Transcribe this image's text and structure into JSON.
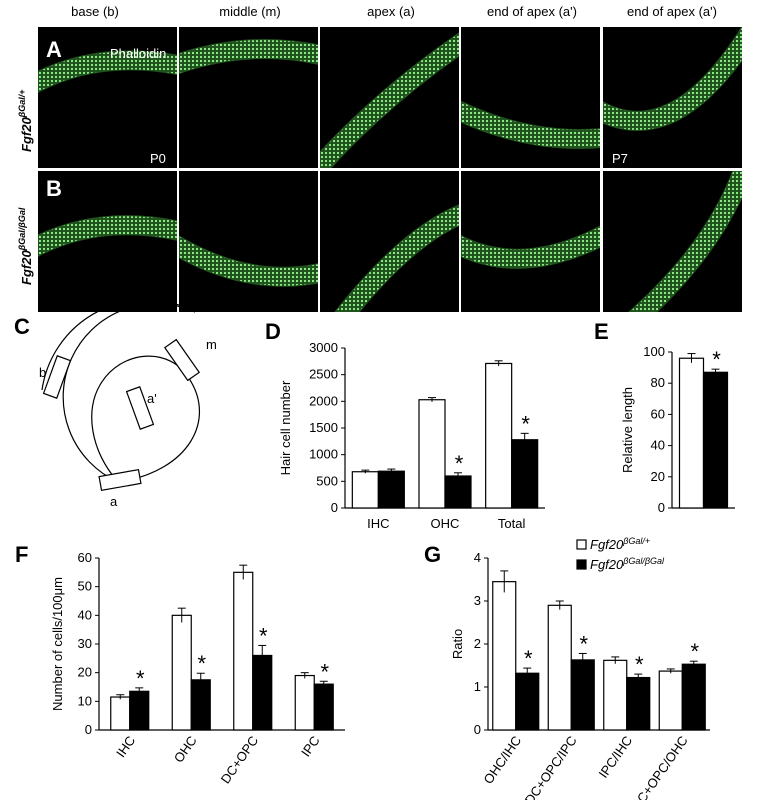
{
  "headers": [
    "base (b)",
    "middle (m)",
    "apex (a)",
    "end of apex (a')",
    "end of apex (a')"
  ],
  "panels": {
    "A": "A",
    "B": "B",
    "C": "C",
    "D": "D",
    "E": "E",
    "F": "F",
    "G": "G"
  },
  "micro": {
    "stain": "Phalloidin",
    "age_left": "P0",
    "age_right": "P7",
    "row_a_genotype": "Fgf20",
    "row_a_sup": "βGal/+",
    "row_b_genotype": "Fgf20",
    "row_b_sup": "βGal/βGal"
  },
  "schematic": {
    "b": "b",
    "m": "m",
    "a_prime": "a'",
    "a": "a"
  },
  "legend": {
    "gen": "Fgf20",
    "het_sup": "βGal/+",
    "mut_sup": "βGal/βGal"
  },
  "colors": {
    "tissue": "#39c435",
    "background": "#000000",
    "het": "#ffffff",
    "mut": "#000000"
  },
  "star": "*",
  "chart_data": [
    {
      "id": "D",
      "type": "bar",
      "ylabel": "Hair cell number",
      "categories": [
        "IHC",
        "OHC",
        "Total"
      ],
      "ylim": [
        0,
        3000
      ],
      "yticks": [
        0,
        500,
        1000,
        1500,
        2000,
        2500,
        3000
      ],
      "series": [
        {
          "name": "Fgf20 βGal/+",
          "values": [
            680,
            2030,
            2710
          ],
          "errors": [
            30,
            40,
            50
          ]
        },
        {
          "name": "Fgf20 βGal/βGal",
          "values": [
            690,
            600,
            1280
          ],
          "errors": [
            40,
            60,
            120
          ]
        }
      ],
      "significant": [
        false,
        true,
        true
      ]
    },
    {
      "id": "E",
      "type": "bar",
      "ylabel": "Relative length",
      "categories": [
        ""
      ],
      "ylim": [
        0,
        100
      ],
      "yticks": [
        0,
        20,
        40,
        60,
        80,
        100
      ],
      "series": [
        {
          "name": "Fgf20 βGal/+",
          "values": [
            96
          ],
          "errors": [
            3
          ]
        },
        {
          "name": "Fgf20 βGal/βGal",
          "values": [
            87
          ],
          "errors": [
            2
          ]
        }
      ],
      "significant": [
        true
      ]
    },
    {
      "id": "F",
      "type": "bar",
      "ylabel": "Number of cells/100μm",
      "categories": [
        "IHC",
        "OHC",
        "DC+OPC",
        "IPC"
      ],
      "ylim": [
        0,
        60
      ],
      "yticks": [
        0,
        10,
        20,
        30,
        40,
        50,
        60
      ],
      "series": [
        {
          "name": "Fgf20 βGal/+",
          "values": [
            11.5,
            40,
            55,
            19
          ],
          "errors": [
            0.8,
            2.5,
            2.5,
            1.0
          ]
        },
        {
          "name": "Fgf20 βGal/βGal",
          "values": [
            13.5,
            17.5,
            26,
            16
          ],
          "errors": [
            1.2,
            2.3,
            3.5,
            1.0
          ]
        }
      ],
      "significant": [
        true,
        true,
        true,
        true
      ]
    },
    {
      "id": "G",
      "type": "bar",
      "ylabel": "Ratio",
      "categories": [
        "OHC/IHC",
        "DC+OPC/IPC",
        "IPC/IHC",
        "DC+OPC/OHC"
      ],
      "ylim": [
        0,
        4
      ],
      "yticks": [
        0,
        1,
        2,
        3,
        4
      ],
      "series": [
        {
          "name": "Fgf20 βGal/+",
          "values": [
            3.45,
            2.9,
            1.62,
            1.37
          ],
          "errors": [
            0.25,
            0.1,
            0.08,
            0.05
          ]
        },
        {
          "name": "Fgf20 βGal/βGal",
          "values": [
            1.32,
            1.63,
            1.22,
            1.53
          ],
          "errors": [
            0.12,
            0.15,
            0.08,
            0.07
          ]
        }
      ],
      "significant": [
        true,
        true,
        true,
        true
      ]
    }
  ]
}
